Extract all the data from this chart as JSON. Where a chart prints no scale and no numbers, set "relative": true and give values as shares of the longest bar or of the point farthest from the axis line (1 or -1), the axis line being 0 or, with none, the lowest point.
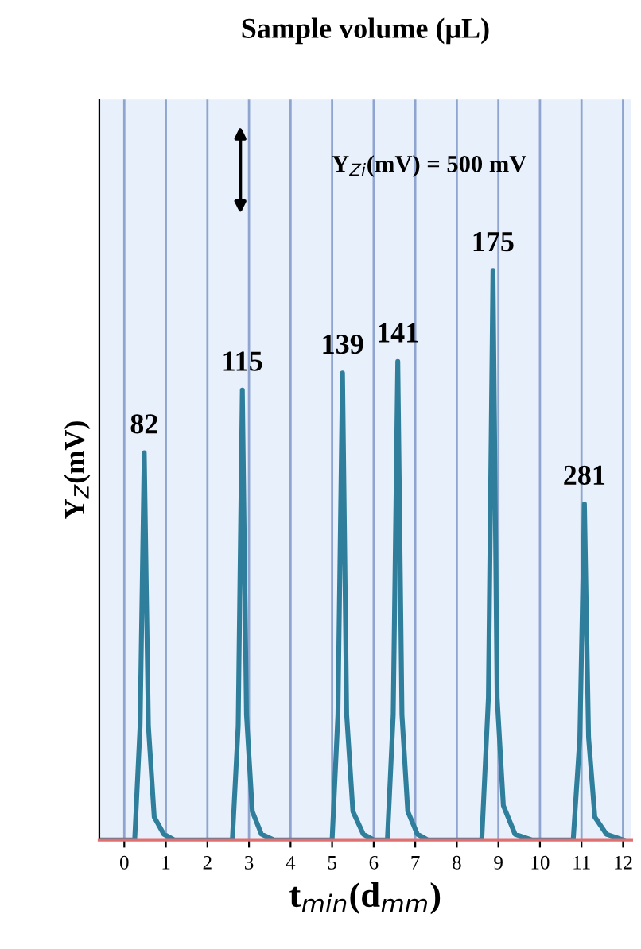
{
  "chart_data": {
    "type": "line",
    "title": "Sample volume (μL)",
    "xlabel": "t$_{min}$(d$_{mm}$)",
    "ylabel": "Y$_{Z}$(mV)",
    "relative": true,
    "grid": "x",
    "marker": "none",
    "line_style": "solid",
    "xlim": [
      -0.6,
      12.2
    ],
    "xticks": [
      0,
      1,
      2,
      3,
      4,
      5,
      6,
      7,
      8,
      9,
      10,
      11,
      12
    ],
    "series": [
      {
        "color": "#2f7f9c",
        "x": [
          -0.6,
          0.25,
          0.38,
          0.48,
          0.58,
          0.72,
          0.95,
          1.2,
          2.6,
          2.74,
          2.84,
          2.94,
          3.08,
          3.3,
          3.6,
          5.0,
          5.14,
          5.25,
          5.35,
          5.5,
          5.75,
          6.0,
          6.33,
          6.47,
          6.58,
          6.68,
          6.82,
          7.05,
          7.3,
          8.6,
          8.76,
          8.87,
          8.97,
          9.12,
          9.4,
          9.8,
          10.8,
          10.96,
          11.07,
          11.17,
          11.32,
          11.6,
          12.0
        ],
        "values": [
          0,
          0,
          0.2,
          0.68,
          0.2,
          0.04,
          0.01,
          0,
          0,
          0.2,
          0.79,
          0.22,
          0.05,
          0.01,
          0,
          0,
          0.22,
          0.82,
          0.22,
          0.05,
          0.01,
          0,
          0,
          0.22,
          0.84,
          0.22,
          0.05,
          0.01,
          0,
          0,
          0.25,
          1,
          0.25,
          0.06,
          0.01,
          0,
          0,
          0.18,
          0.59,
          0.18,
          0.04,
          0.01,
          0
        ]
      }
    ],
    "annotations": [
      {
        "text": "82",
        "x": 0.48,
        "y": 0.68
      },
      {
        "text": "115",
        "x": 2.84,
        "y": 0.79
      },
      {
        "text": "139",
        "x": 5.25,
        "y": 0.82
      },
      {
        "text": "141",
        "x": 6.58,
        "y": 0.84
      },
      {
        "text": "175",
        "x": 8.87,
        "y": 1
      },
      {
        "text": "281",
        "x": 11.07,
        "y": 0.59
      },
      "Y$_{Zi}$(mV) = 500 mV"
    ]
  }
}
